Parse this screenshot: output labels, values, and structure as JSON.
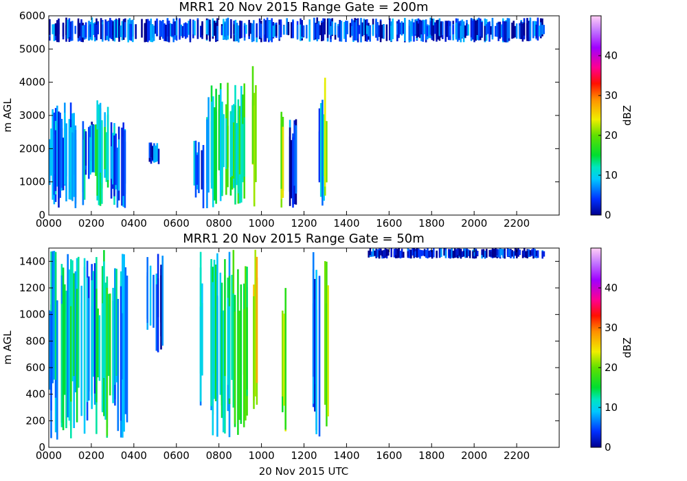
{
  "chart_data": [
    {
      "type": "heatmap",
      "title": "MRR1 20 Nov 2015 Range Gate = 200m",
      "ylabel": "m AGL",
      "xlabel": "",
      "x_ticks": [
        "0000",
        "0200",
        "0400",
        "0600",
        "0800",
        "1000",
        "1200",
        "1400",
        "1600",
        "1800",
        "2000",
        "2200"
      ],
      "xlim_hours": [
        0,
        24
      ],
      "data_end_hour": 23.33,
      "ylim": [
        0,
        6000
      ],
      "y_ticks": [
        0,
        1000,
        2000,
        3000,
        4000,
        5000,
        6000
      ],
      "colorbar": {
        "label": "dBZ",
        "range": [
          0,
          50
        ],
        "ticks": [
          0,
          10,
          20,
          30,
          40
        ]
      },
      "echo_regions": [
        {
          "t0": 0.0,
          "t1": 1.0,
          "h0": 200,
          "h1": 3400,
          "dbz": 6
        },
        {
          "t0": 1.0,
          "t1": 1.7,
          "h0": 200,
          "h1": 3200,
          "dbz": 8
        },
        {
          "t0": 1.7,
          "t1": 2.2,
          "h0": 1000,
          "h1": 3000,
          "dbz": 5
        },
        {
          "t0": 2.1,
          "t1": 2.9,
          "h0": 200,
          "h1": 3600,
          "dbz": 13
        },
        {
          "t0": 2.9,
          "t1": 3.6,
          "h0": 200,
          "h1": 2800,
          "dbz": 7
        },
        {
          "t0": 4.7,
          "t1": 5.2,
          "h0": 1500,
          "h1": 2200,
          "dbz": 5
        },
        {
          "t0": 6.8,
          "t1": 7.3,
          "h0": 200,
          "h1": 2400,
          "dbz": 6
        },
        {
          "t0": 7.4,
          "t1": 8.3,
          "h0": 200,
          "h1": 4000,
          "dbz": 12
        },
        {
          "t0": 8.3,
          "t1": 9.2,
          "h0": 200,
          "h1": 4000,
          "dbz": 14
        },
        {
          "t0": 9.55,
          "t1": 9.7,
          "h0": 200,
          "h1": 4500,
          "dbz": 24
        },
        {
          "t0": 10.9,
          "t1": 11.05,
          "h0": 200,
          "h1": 3300,
          "dbz": 21
        },
        {
          "t0": 11.3,
          "t1": 11.6,
          "h0": 200,
          "h1": 2900,
          "dbz": 4
        },
        {
          "t0": 12.4,
          "t1": 12.9,
          "h0": 200,
          "h1": 3500,
          "dbz": 8
        },
        {
          "t0": 12.95,
          "t1": 13.05,
          "h0": 200,
          "h1": 4200,
          "dbz": 22
        },
        {
          "t0": 0.0,
          "t1": 23.3,
          "h0": 5200,
          "h1": 5950,
          "dbz": 4
        }
      ]
    },
    {
      "type": "heatmap",
      "title": "MRR1 20 Nov 2015 Range Gate = 50m",
      "ylabel": "m AGL",
      "xlabel": "20 Nov 2015 UTC",
      "x_ticks": [
        "0000",
        "0200",
        "0400",
        "0600",
        "0800",
        "1000",
        "1200",
        "1400",
        "1600",
        "1800",
        "2000",
        "2200"
      ],
      "xlim_hours": [
        0,
        24
      ],
      "data_end_hour": 23.33,
      "ylim": [
        0,
        1500
      ],
      "y_ticks": [
        0,
        200,
        400,
        600,
        800,
        1000,
        1200,
        1400
      ],
      "colorbar": {
        "label": "dBZ",
        "range": [
          0,
          50
        ],
        "ticks": [
          0,
          10,
          20,
          30,
          40
        ]
      },
      "echo_regions": [
        {
          "t0": 0.0,
          "t1": 1.0,
          "h0": 50,
          "h1": 1500,
          "dbz": 10
        },
        {
          "t0": 1.0,
          "t1": 1.7,
          "h0": 50,
          "h1": 1500,
          "dbz": 12
        },
        {
          "t0": 1.7,
          "t1": 2.2,
          "h0": 200,
          "h1": 1500,
          "dbz": 8
        },
        {
          "t0": 2.2,
          "t1": 3.0,
          "h0": 50,
          "h1": 1500,
          "dbz": 14
        },
        {
          "t0": 3.0,
          "t1": 3.7,
          "h0": 50,
          "h1": 1500,
          "dbz": 9
        },
        {
          "t0": 4.6,
          "t1": 5.4,
          "h0": 700,
          "h1": 1500,
          "dbz": 5
        },
        {
          "t0": 7.1,
          "t1": 7.3,
          "h0": 50,
          "h1": 1500,
          "dbz": 7
        },
        {
          "t0": 7.6,
          "t1": 8.5,
          "h0": 50,
          "h1": 1500,
          "dbz": 12
        },
        {
          "t0": 8.5,
          "t1": 9.3,
          "h0": 50,
          "h1": 1500,
          "dbz": 15
        },
        {
          "t0": 9.6,
          "t1": 9.75,
          "h0": 50,
          "h1": 1500,
          "dbz": 24
        },
        {
          "t0": 10.95,
          "t1": 11.1,
          "h0": 50,
          "h1": 1500,
          "dbz": 20
        },
        {
          "t0": 12.4,
          "t1": 12.75,
          "h0": 50,
          "h1": 1500,
          "dbz": 6
        },
        {
          "t0": 12.95,
          "t1": 13.1,
          "h0": 50,
          "h1": 1500,
          "dbz": 22
        },
        {
          "t0": 15.0,
          "t1": 23.3,
          "h0": 1420,
          "h1": 1500,
          "dbz": 3
        }
      ]
    }
  ]
}
